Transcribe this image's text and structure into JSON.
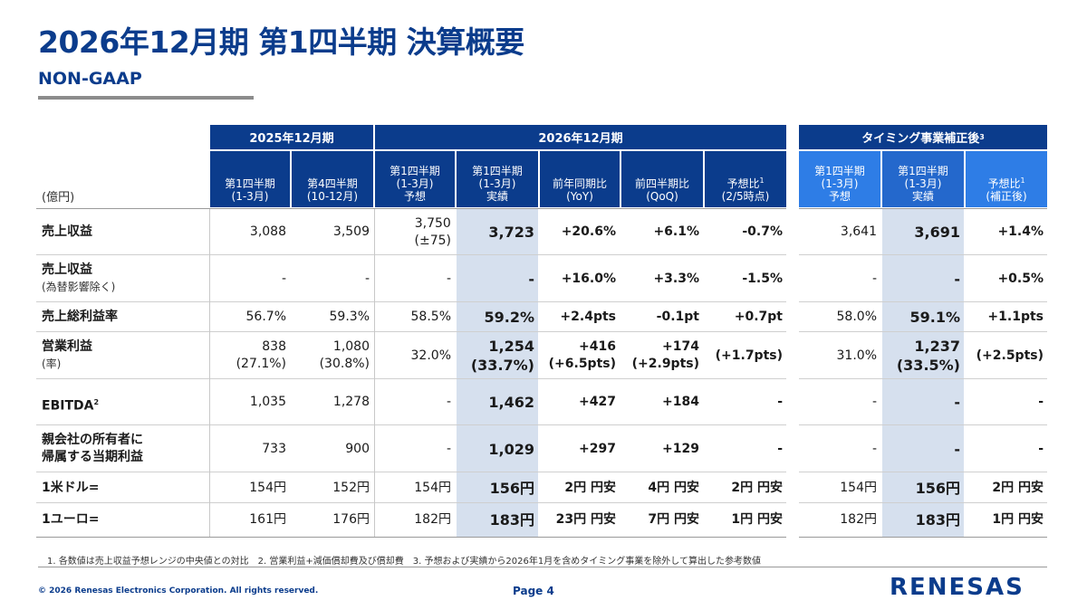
{
  "title": "2026年12月期 第1四半期 決算概要",
  "subtitle": "NON-GAAP",
  "unit_label": "(億円)",
  "groups": {
    "fy2025": "2025年12月期",
    "fy2026": "2026年12月期",
    "timing": "タイミング事業補正後",
    "timing_sup": "3"
  },
  "columns": [
    {
      "l1": "第1四半期",
      "l2": "(1-3月)",
      "l3": "",
      "sup": ""
    },
    {
      "l1": "第4四半期",
      "l2": "(10-12月)",
      "l3": "",
      "sup": ""
    },
    {
      "l1": "第1四半期",
      "l2": "(1-3月)",
      "l3": "予想",
      "sup": ""
    },
    {
      "l1": "第1四半期",
      "l2": "(1-3月)",
      "l3": "実績",
      "sup": ""
    },
    {
      "l1": "前年同期比",
      "l2": "(YoY)",
      "l3": "",
      "sup": ""
    },
    {
      "l1": "前四半期比",
      "l2": "(QoQ)",
      "l3": "",
      "sup": ""
    },
    {
      "l1": "予想比",
      "l2": "(2/5時点)",
      "l3": "",
      "sup": "1"
    },
    {
      "l1": "第1四半期",
      "l2": "(1-3月)",
      "l3": "予想",
      "sup": ""
    },
    {
      "l1": "第1四半期",
      "l2": "(1-3月)",
      "l3": "実績",
      "sup": ""
    },
    {
      "l1": "予想比",
      "l2": "(補正後)",
      "l3": "",
      "sup": "1"
    }
  ],
  "rows": [
    {
      "label": "売上収益",
      "sub": "",
      "sup": "",
      "cells": [
        "3,088",
        "3,509",
        "3,750\n(±75)",
        "3,723",
        "+20.6%",
        "+6.1%",
        "-0.7%",
        "3,641",
        "3,691",
        "+1.4%"
      ]
    },
    {
      "label": "売上収益",
      "sub": "(為替影響除く)",
      "sup": "",
      "cells": [
        "-",
        "-",
        "-",
        "-",
        "+16.0%",
        "+3.3%",
        "-1.5%",
        "-",
        "-",
        "+0.5%"
      ]
    },
    {
      "label": "売上総利益率",
      "sub": "",
      "sup": "",
      "cells": [
        "56.7%",
        "59.3%",
        "58.5%",
        "59.2%",
        "+2.4pts",
        "-0.1pt",
        "+0.7pt",
        "58.0%",
        "59.1%",
        "+1.1pts"
      ]
    },
    {
      "label": "営業利益",
      "sub": "(率)",
      "sup": "",
      "cells": [
        "838\n(27.1%)",
        "1,080\n(30.8%)",
        "32.0%",
        "1,254\n(33.7%)",
        "+416\n(+6.5pts)",
        "+174\n(+2.9pts)",
        "(+1.7pts)",
        "31.0%",
        "1,237\n(33.5%)",
        "(+2.5pts)"
      ]
    },
    {
      "label": "EBITDA",
      "sub": "",
      "sup": "2",
      "cells": [
        "1,035",
        "1,278",
        "-",
        "1,462",
        "+427",
        "+184",
        "-",
        "-",
        "-",
        "-"
      ]
    },
    {
      "label": "親会社の所有者に\n帰属する当期利益",
      "sub": "",
      "sup": "",
      "cells": [
        "733",
        "900",
        "-",
        "1,029",
        "+297",
        "+129",
        "-",
        "-",
        "-",
        "-"
      ]
    },
    {
      "label": "1米ドル=",
      "sub": "",
      "sup": "",
      "cells": [
        "154円",
        "152円",
        "154円",
        "156円",
        "2円 円安",
        "4円 円安",
        "2円 円安",
        "154円",
        "156円",
        "2円 円安"
      ]
    },
    {
      "label": "1ユーロ=",
      "sub": "",
      "sup": "",
      "cells": [
        "161円",
        "176円",
        "182円",
        "183円",
        "23円 円安",
        "7円 円安",
        "1円 円安",
        "182円",
        "183円",
        "1円 円安"
      ]
    }
  ],
  "footnote": "1. 各数値は売上収益予想レンジの中央値との対比　2. 営業利益+減価償却費及び償却費　3. 予想および実績から2026年1月を含めタイミング事業を除外して算出した参考数値",
  "copyright": "© 2026 Renesas Electronics Corporation. All rights reserved.",
  "page_label": "Page 4",
  "logo_text": "RENESAS",
  "colors": {
    "brand": "#0b3c8c",
    "timing_header": "#2e7de6",
    "actual_shade": "#d6e0ee"
  }
}
